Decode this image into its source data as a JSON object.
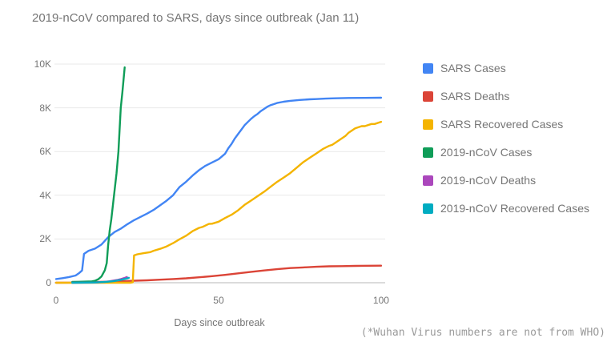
{
  "chart": {
    "title": "2019-nCoV compared to SARS, days since outbreak (Jan 11)",
    "xlabel": "Days since outbreak",
    "footnote": "(*Wuhan Virus numbers are not from WHO)"
  },
  "colors": {
    "grid": "#e9e9e9",
    "baseline": "#b7b7b7",
    "text": "#757575",
    "footnote_text": "#9a9a9a",
    "blue": "#4285F4",
    "red": "#DB4437",
    "yellow": "#F4B400",
    "green": "#0F9D58",
    "purple": "#AB47BC",
    "teal": "#00ACC1"
  },
  "chart_data": {
    "type": "line",
    "title": "2019-nCoV compared to SARS, days since outbreak (Jan 11)",
    "xlabel": "Days since outbreak",
    "ylabel": "",
    "xlim": [
      0,
      101
    ],
    "ylim": [
      0,
      10000
    ],
    "grid": true,
    "legend_position": "right",
    "x_ticks": [
      {
        "value": 0,
        "label": "0"
      },
      {
        "value": 50,
        "label": "50"
      },
      {
        "value": 100,
        "label": "100"
      }
    ],
    "y_ticks": [
      {
        "value": 0,
        "label": "0"
      },
      {
        "value": 2000,
        "label": "2K"
      },
      {
        "value": 4000,
        "label": "4K"
      },
      {
        "value": 6000,
        "label": "6K"
      },
      {
        "value": 8000,
        "label": "8K"
      },
      {
        "value": 10000,
        "label": "10K"
      }
    ],
    "series": [
      {
        "name": "SARS Cases",
        "color": "#4285F4",
        "points": [
          [
            0,
            170
          ],
          [
            2,
            210
          ],
          [
            4,
            260
          ],
          [
            6,
            330
          ],
          [
            7,
            430
          ],
          [
            8,
            560
          ],
          [
            8.6,
            1320
          ],
          [
            10,
            1460
          ],
          [
            12,
            1560
          ],
          [
            14,
            1750
          ],
          [
            16,
            2080
          ],
          [
            18,
            2320
          ],
          [
            20,
            2480
          ],
          [
            22,
            2680
          ],
          [
            24,
            2860
          ],
          [
            26,
            3010
          ],
          [
            28,
            3160
          ],
          [
            30,
            3330
          ],
          [
            32,
            3540
          ],
          [
            34,
            3750
          ],
          [
            36,
            4000
          ],
          [
            38,
            4380
          ],
          [
            40,
            4620
          ],
          [
            42,
            4900
          ],
          [
            44,
            5150
          ],
          [
            46,
            5350
          ],
          [
            48,
            5500
          ],
          [
            50,
            5650
          ],
          [
            52,
            5900
          ],
          [
            53,
            6150
          ],
          [
            54,
            6350
          ],
          [
            55,
            6600
          ],
          [
            56,
            6800
          ],
          [
            57,
            7000
          ],
          [
            58,
            7200
          ],
          [
            59,
            7350
          ],
          [
            60,
            7500
          ],
          [
            61,
            7620
          ],
          [
            62,
            7720
          ],
          [
            63,
            7850
          ],
          [
            64,
            7950
          ],
          [
            65,
            8050
          ],
          [
            66,
            8120
          ],
          [
            67,
            8170
          ],
          [
            68,
            8220
          ],
          [
            70,
            8280
          ],
          [
            72,
            8320
          ],
          [
            75,
            8360
          ],
          [
            78,
            8390
          ],
          [
            80,
            8400
          ],
          [
            83,
            8420
          ],
          [
            86,
            8435
          ],
          [
            90,
            8450
          ],
          [
            95,
            8455
          ],
          [
            100,
            8460
          ]
        ]
      },
      {
        "name": "SARS Deaths",
        "color": "#DB4437",
        "points": [
          [
            0,
            0
          ],
          [
            4,
            3
          ],
          [
            8,
            10
          ],
          [
            12,
            30
          ],
          [
            16,
            50
          ],
          [
            20,
            65
          ],
          [
            24,
            90
          ],
          [
            28,
            110
          ],
          [
            32,
            140
          ],
          [
            36,
            170
          ],
          [
            40,
            200
          ],
          [
            44,
            250
          ],
          [
            48,
            300
          ],
          [
            52,
            360
          ],
          [
            56,
            430
          ],
          [
            60,
            500
          ],
          [
            64,
            560
          ],
          [
            68,
            620
          ],
          [
            72,
            670
          ],
          [
            76,
            700
          ],
          [
            80,
            730
          ],
          [
            84,
            750
          ],
          [
            88,
            760
          ],
          [
            92,
            770
          ],
          [
            96,
            775
          ],
          [
            100,
            780
          ]
        ]
      },
      {
        "name": "SARS Recovered Cases",
        "color": "#F4B400",
        "points": [
          [
            0,
            0
          ],
          [
            10,
            0
          ],
          [
            20,
            0
          ],
          [
            23,
            0
          ],
          [
            23.6,
            20
          ],
          [
            24,
            1250
          ],
          [
            25,
            1300
          ],
          [
            27,
            1350
          ],
          [
            29,
            1400
          ],
          [
            30,
            1460
          ],
          [
            32,
            1550
          ],
          [
            34,
            1660
          ],
          [
            36,
            1810
          ],
          [
            38,
            1990
          ],
          [
            40,
            2150
          ],
          [
            42,
            2360
          ],
          [
            44,
            2510
          ],
          [
            45,
            2550
          ],
          [
            47,
            2690
          ],
          [
            48,
            2700
          ],
          [
            50,
            2790
          ],
          [
            52,
            2960
          ],
          [
            54,
            3110
          ],
          [
            56,
            3310
          ],
          [
            58,
            3560
          ],
          [
            60,
            3760
          ],
          [
            62,
            3960
          ],
          [
            64,
            4160
          ],
          [
            66,
            4390
          ],
          [
            68,
            4610
          ],
          [
            70,
            4810
          ],
          [
            72,
            5010
          ],
          [
            74,
            5260
          ],
          [
            76,
            5510
          ],
          [
            78,
            5710
          ],
          [
            80,
            5910
          ],
          [
            82,
            6110
          ],
          [
            84,
            6260
          ],
          [
            85,
            6310
          ],
          [
            87,
            6510
          ],
          [
            89,
            6710
          ],
          [
            90,
            6860
          ],
          [
            92,
            7060
          ],
          [
            94,
            7160
          ],
          [
            95,
            7160
          ],
          [
            97,
            7260
          ],
          [
            98,
            7260
          ],
          [
            100,
            7360
          ]
        ]
      },
      {
        "name": "2019-nCoV Cases",
        "color": "#0F9D58",
        "points": [
          [
            5,
            40
          ],
          [
            7,
            44
          ],
          [
            9,
            50
          ],
          [
            11,
            62
          ],
          [
            12,
            90
          ],
          [
            13,
            160
          ],
          [
            14,
            290
          ],
          [
            15,
            570
          ],
          [
            15.6,
            900
          ],
          [
            16,
            1700
          ],
          [
            16.5,
            2400
          ],
          [
            17,
            2900
          ],
          [
            17.9,
            4100
          ],
          [
            18.6,
            5000
          ],
          [
            19.2,
            6000
          ],
          [
            19.9,
            8000
          ],
          [
            20.4,
            8700
          ],
          [
            21.1,
            9850
          ]
        ]
      },
      {
        "name": "2019-nCoV Deaths",
        "color": "#AB47BC",
        "points": [
          [
            5,
            0
          ],
          [
            8,
            2
          ],
          [
            10,
            4
          ],
          [
            12,
            9
          ],
          [
            13,
            17
          ],
          [
            14,
            25
          ],
          [
            15,
            40
          ],
          [
            16,
            56
          ],
          [
            17,
            80
          ],
          [
            18,
            106
          ],
          [
            19,
            132
          ],
          [
            20,
            170
          ],
          [
            21,
            213
          ],
          [
            21.8,
            259
          ]
        ]
      },
      {
        "name": "2019-nCoV Recovered Cases",
        "color": "#00ACC1",
        "points": [
          [
            5,
            0
          ],
          [
            8,
            3
          ],
          [
            10,
            6
          ],
          [
            12,
            12
          ],
          [
            14,
            28
          ],
          [
            15,
            38
          ],
          [
            16,
            49
          ],
          [
            17,
            62
          ],
          [
            18,
            82
          ],
          [
            19,
            105
          ],
          [
            20,
            130
          ],
          [
            21,
            168
          ],
          [
            22,
            200
          ],
          [
            22.4,
            222
          ]
        ]
      }
    ]
  }
}
